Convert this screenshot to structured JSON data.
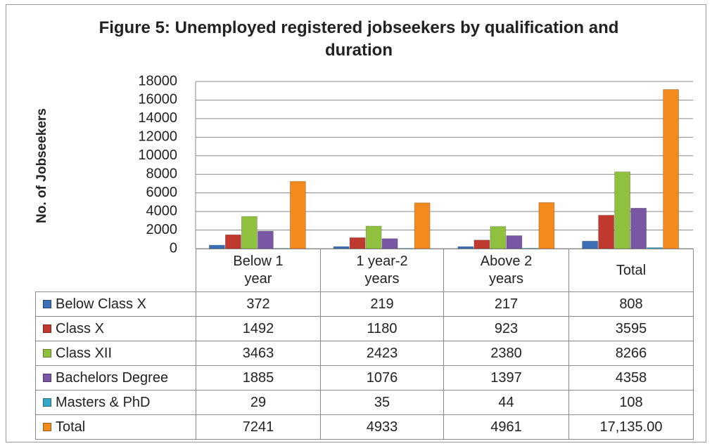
{
  "chart_data": {
    "type": "bar",
    "title": "Figure 5: Unemployed registered jobseekers by qualification and duration",
    "y_label": "No. of Jobseekers",
    "categories": [
      "Below 1 year",
      "1 year-2 years",
      "Above 2 years",
      "Total"
    ],
    "series": [
      {
        "name": "Below Class X",
        "color": "#3b6fb6",
        "values": [
          372,
          219,
          217,
          808
        ]
      },
      {
        "name": "Class X",
        "color": "#c0392f",
        "values": [
          1492,
          1180,
          923,
          3595
        ]
      },
      {
        "name": "Class XII",
        "color": "#8fc13e",
        "values": [
          3463,
          2423,
          2380,
          8266
        ]
      },
      {
        "name": "Bachelors Degree",
        "color": "#7a57a5",
        "values": [
          1885,
          1076,
          1397,
          4358
        ]
      },
      {
        "name": "Masters & PhD",
        "color": "#35a7c8",
        "values": [
          29,
          35,
          44,
          108
        ]
      },
      {
        "name": "Total",
        "color": "#f28a1e",
        "values": [
          7241,
          4933,
          4961,
          17135
        ],
        "value_labels": [
          "7241",
          "4933",
          "4961",
          "17,135.00"
        ]
      }
    ],
    "ylim": [
      0,
      18000
    ],
    "yticks": [
      0,
      2000,
      4000,
      6000,
      8000,
      10000,
      12000,
      14000,
      16000,
      18000
    ],
    "grid": true
  }
}
